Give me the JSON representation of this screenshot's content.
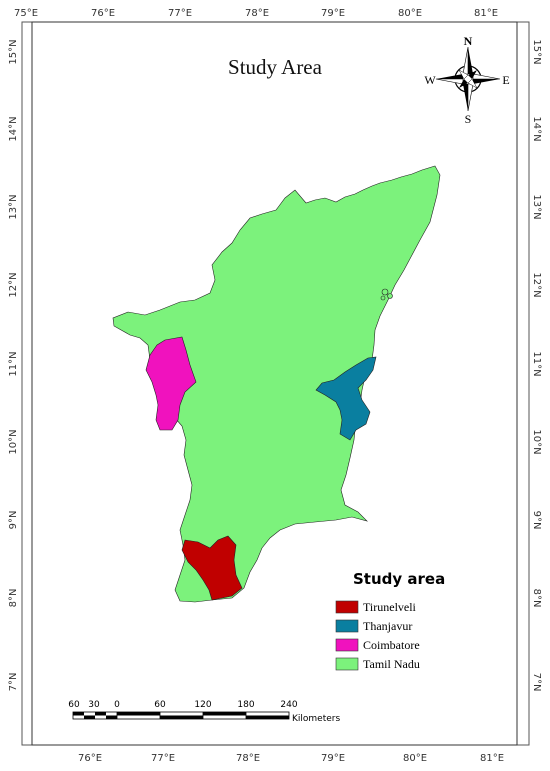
{
  "title": "Study Area",
  "lon_labels": [
    "75°E",
    "76°E",
    "77°E",
    "78°E",
    "79°E",
    "80°E",
    "81°E"
  ],
  "lon_labels_bottom": [
    "76°E",
    "77°E",
    "78°E",
    "79°E",
    "80°E",
    "81°E"
  ],
  "lat_labels": [
    "15°N",
    "14°N",
    "13°N",
    "12°N",
    "11°N",
    "10°N",
    "9°N",
    "8°N",
    "7°N"
  ],
  "compass": {
    "n": "N",
    "s": "S",
    "e": "E",
    "w": "W"
  },
  "legend": {
    "title": "Study area",
    "items": [
      {
        "label": "Tirunelveli",
        "color": "#c00000"
      },
      {
        "label": "Thanjavur",
        "color": "#0a7fa0"
      },
      {
        "label": "Coimbatore",
        "color": "#f012be"
      },
      {
        "label": "Tamil Nadu",
        "color": "#7cf27c"
      }
    ]
  },
  "scale": {
    "numbers": [
      "60",
      "30",
      "0",
      "60",
      "120",
      "180",
      "240"
    ],
    "unit": "Kilometers"
  },
  "colors": {
    "tamil_nadu": "#7cf27c",
    "tirunelveli": "#c00000",
    "thanjavur": "#0a7fa0",
    "coimbatore": "#f012be",
    "border": "#222222"
  }
}
